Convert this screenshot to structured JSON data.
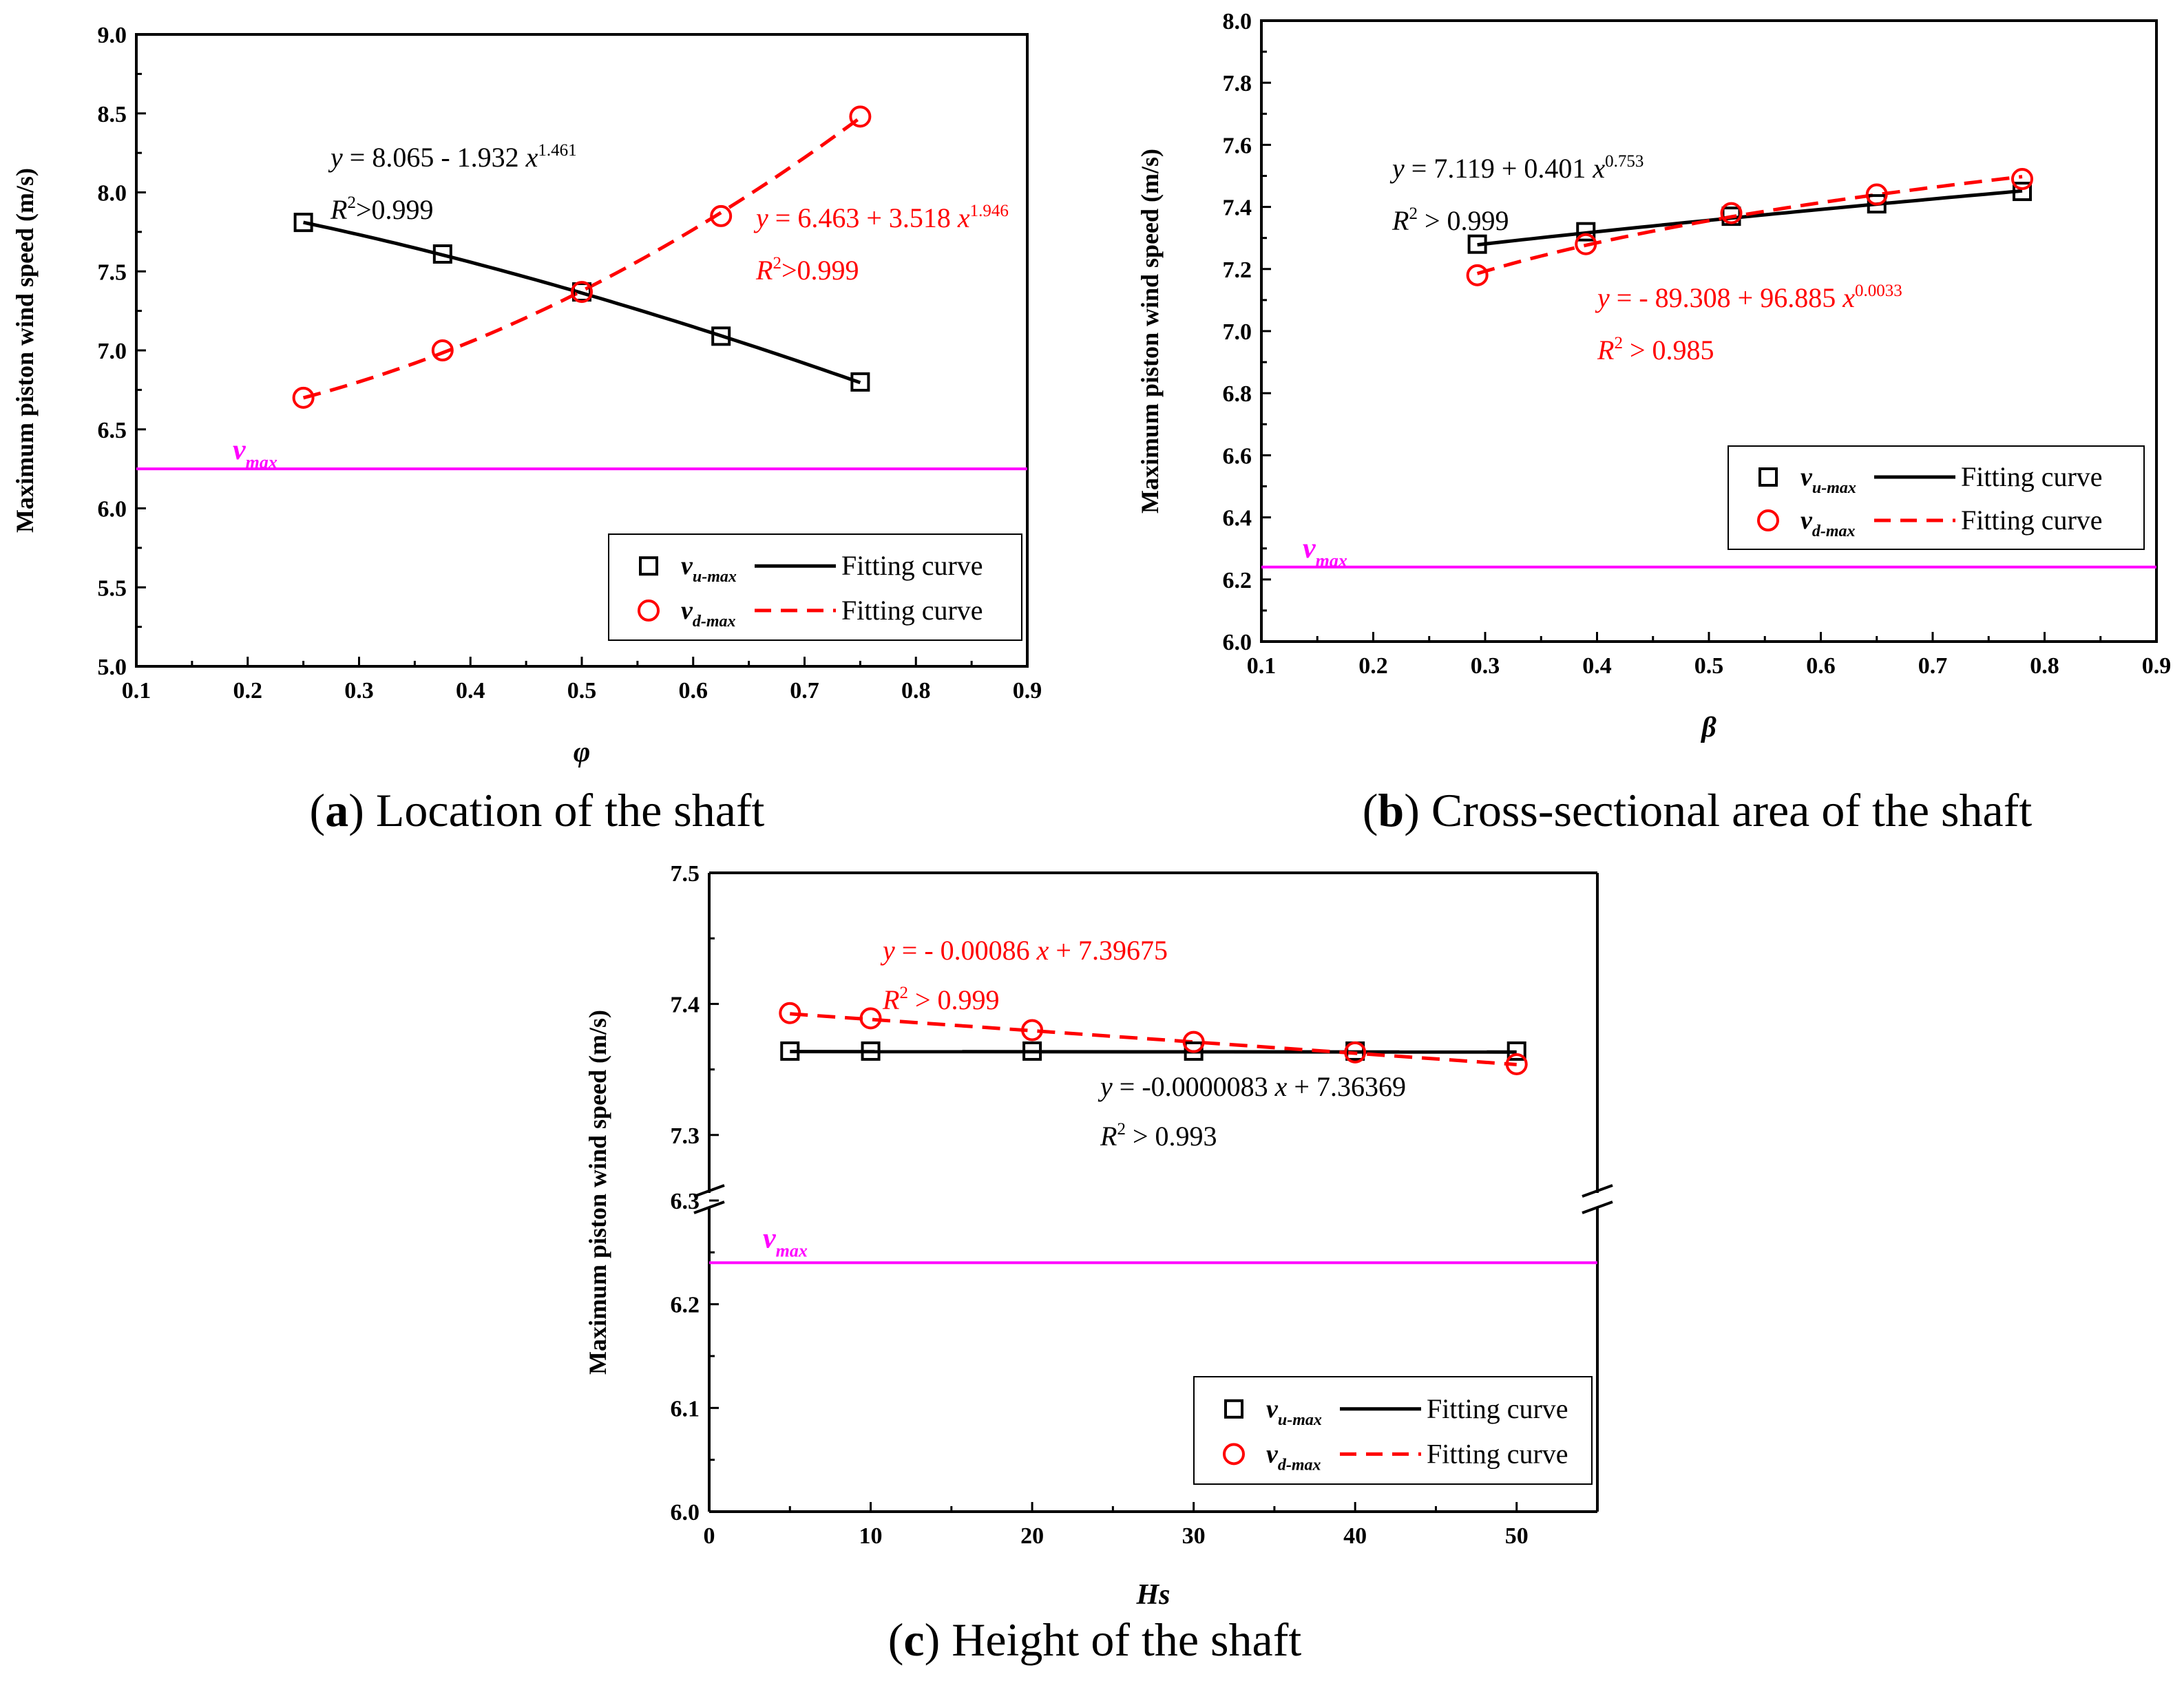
{
  "colors": {
    "black": "#000000",
    "red": "#ff0000",
    "magenta": "#ff00ff"
  },
  "captions": [
    {
      "letter": "a",
      "text": " Location of the shaft"
    },
    {
      "letter": "b",
      "text": " Cross-sectional area of the shaft"
    },
    {
      "letter": "c",
      "text": " Height of the shaft"
    }
  ],
  "chart_data": [
    {
      "type": "line",
      "panel": "a",
      "xlabel": "φ",
      "ylabel": "Maximum piston wind speed (m/s)",
      "xlim": [
        0.1,
        0.9
      ],
      "ylim": [
        5.0,
        9.0
      ],
      "xticks": [
        "0.1",
        "0.2",
        "0.3",
        "0.4",
        "0.5",
        "0.6",
        "0.7",
        "0.8",
        "0.9"
      ],
      "yticks": [
        "5.0",
        "5.5",
        "6.0",
        "6.5",
        "7.0",
        "7.5",
        "8.0",
        "8.5",
        "9.0"
      ],
      "vmax": 6.25,
      "vmax_label": {
        "main": "v",
        "sub": "max"
      },
      "series": [
        {
          "name": "v_u-max",
          "x": [
            0.25,
            0.375,
            0.5,
            0.625,
            0.75
          ],
          "y": [
            7.81,
            7.61,
            7.37,
            7.09,
            6.8
          ]
        },
        {
          "name": "v_d-max",
          "x": [
            0.25,
            0.375,
            0.5,
            0.625,
            0.75
          ],
          "y": [
            6.7,
            7.0,
            7.37,
            7.85,
            8.48
          ]
        }
      ],
      "fits": [
        {
          "series": "v_u-max",
          "form": "y = 8.065 - 1.932 x^1.461",
          "a": 8.065,
          "b": -1.932,
          "c": 1.461,
          "line1": {
            "pre": "y",
            "mid": " = 8.065 - 1.932 ",
            "x": "x",
            "exp": "1.461"
          },
          "line2": {
            "pre": "R",
            "exp": "2",
            "post": ">0.999"
          }
        },
        {
          "series": "v_d-max",
          "form": "y = 6.463 + 3.518 x^1.946",
          "a": 6.463,
          "b": 3.518,
          "c": 1.946,
          "line1": {
            "pre": "y",
            "mid": " = 6.463 + 3.518 ",
            "x": "x",
            "exp": "1.946"
          },
          "line2": {
            "pre": "R",
            "exp": "2",
            "post": ">0.999"
          }
        }
      ],
      "legend": {
        "position": "bottom-right",
        "entries": [
          {
            "main": "v",
            "sub": "u-max",
            "text": "Fitting curve"
          },
          {
            "main": "v",
            "sub": "d-max",
            "text": "Fitting curve"
          }
        ]
      }
    },
    {
      "type": "line",
      "panel": "b",
      "xlabel": "β",
      "ylabel": "Maximum piston wind speed (m/s)",
      "xlim": [
        0.1,
        0.9
      ],
      "ylim": [
        6.0,
        8.0
      ],
      "xticks": [
        "0.1",
        "0.2",
        "0.3",
        "0.4",
        "0.5",
        "0.6",
        "0.7",
        "0.8",
        "0.9"
      ],
      "yticks": [
        "6.0",
        "6.2",
        "6.4",
        "6.6",
        "6.8",
        "7.0",
        "7.2",
        "7.4",
        "7.6",
        "7.8",
        "8.0"
      ],
      "vmax": 6.24,
      "vmax_label": {
        "main": "v",
        "sub": "max"
      },
      "series": [
        {
          "name": "v_u-max",
          "x": [
            0.293,
            0.39,
            0.52,
            0.65,
            0.78
          ],
          "y": [
            7.28,
            7.32,
            7.37,
            7.41,
            7.45
          ]
        },
        {
          "name": "v_d-max",
          "x": [
            0.293,
            0.39,
            0.52,
            0.65,
            0.78
          ],
          "y": [
            7.18,
            7.28,
            7.38,
            7.44,
            7.49
          ]
        }
      ],
      "fits": [
        {
          "series": "v_u-max",
          "form": "y = 7.119 + 0.401 x^0.753",
          "a": 7.119,
          "b": 0.401,
          "c": 0.753,
          "line1": {
            "pre": "y",
            "mid": " = 7.119 + 0.401 ",
            "x": "x",
            "exp": "0.753"
          },
          "line2": {
            "pre": "R",
            "exp": "2",
            "post": " > 0.999"
          }
        },
        {
          "series": "v_d-max",
          "form": "y = - 89.308 + 96.885 x^0.0033",
          "a": -89.308,
          "b": 96.885,
          "c": 0.0033,
          "line1": {
            "pre": "y",
            "mid": " = - 89.308 + 96.885 ",
            "x": "x",
            "exp": "0.0033"
          },
          "line2": {
            "pre": "R",
            "exp": "2",
            "post": " > 0.985"
          }
        }
      ],
      "legend": {
        "position": "bottom-right",
        "entries": [
          {
            "main": "v",
            "sub": "u-max",
            "text": "Fitting curve"
          },
          {
            "main": "v",
            "sub": "d-max",
            "text": "Fitting curve"
          }
        ]
      }
    },
    {
      "type": "line",
      "panel": "c",
      "xlabel": "Hs",
      "ylabel": "Maximum piston wind speed (m/s)",
      "xlim": [
        0,
        55
      ],
      "ylim": [
        6.0,
        7.5
      ],
      "y_break": [
        6.3,
        7.25
      ],
      "xticks": [
        "0",
        "10",
        "20",
        "30",
        "40",
        "50"
      ],
      "yticks_lower": [
        "6.0",
        "6.1",
        "6.2",
        "6.3"
      ],
      "yticks_upper": [
        "7.3",
        "7.4",
        "7.5"
      ],
      "vmax": 6.24,
      "vmax_label": {
        "main": "v",
        "sub": "max"
      },
      "series": [
        {
          "name": "v_u-max",
          "x": [
            5,
            10,
            20,
            30,
            40,
            50
          ],
          "y": [
            7.364,
            7.364,
            7.364,
            7.364,
            7.364,
            7.364
          ]
        },
        {
          "name": "v_d-max",
          "x": [
            5,
            10,
            20,
            30,
            40,
            50
          ],
          "y": [
            7.393,
            7.389,
            7.38,
            7.371,
            7.363,
            7.354
          ]
        }
      ],
      "fits": [
        {
          "series": "v_u-max",
          "form": "y = -0.0000083 x + 7.36369",
          "slope": -8.3e-06,
          "intercept": 7.36369,
          "line1": {
            "pre": "y",
            "mid": " = -0.0000083 ",
            "x": "x",
            "post": " + 7.36369"
          },
          "line2": {
            "pre": "R",
            "exp": "2",
            "post": " > 0.993"
          }
        },
        {
          "series": "v_d-max",
          "form": "y = - 0.00086 x + 7.39675",
          "slope": -0.00086,
          "intercept": 7.39675,
          "line1": {
            "pre": "y",
            "mid": " = - 0.00086 ",
            "x": "x",
            "post": " + 7.39675"
          },
          "line2": {
            "pre": "R",
            "exp": "2",
            "post": " > 0.999"
          }
        }
      ],
      "legend": {
        "position": "bottom-right",
        "entries": [
          {
            "main": "v",
            "sub": "u-max",
            "text": "Fitting curve"
          },
          {
            "main": "v",
            "sub": "d-max",
            "text": "Fitting curve"
          }
        ]
      }
    }
  ]
}
